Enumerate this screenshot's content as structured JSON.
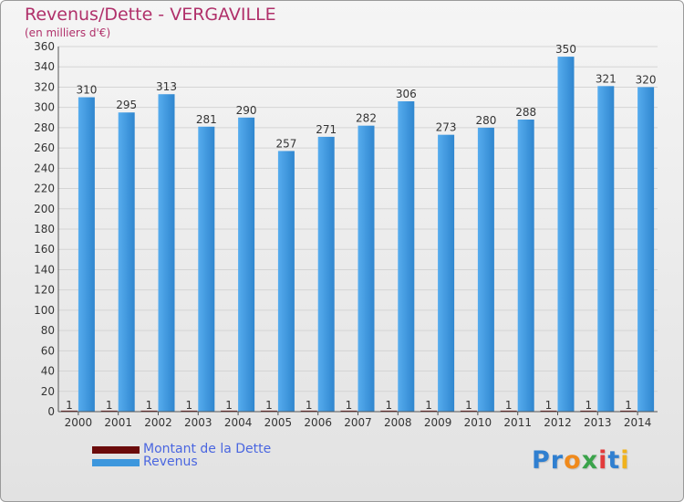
{
  "chart_data": {
    "type": "bar",
    "title": "Revenus/Dette - VERGAVILLE",
    "subtitle": "(en milliers d'€)",
    "categories": [
      "2000",
      "2001",
      "2002",
      "2003",
      "2004",
      "2005",
      "2006",
      "2007",
      "2008",
      "2009",
      "2010",
      "2011",
      "2012",
      "2013",
      "2014"
    ],
    "series": [
      {
        "name": "Montant de la Dette",
        "color": "#6b0b0b",
        "values": [
          1,
          1,
          1,
          1,
          1,
          1,
          1,
          1,
          1,
          1,
          1,
          1,
          1,
          1,
          1
        ]
      },
      {
        "name": "Revenus",
        "color": "#3d97dd",
        "values": [
          310,
          295,
          313,
          281,
          290,
          257,
          271,
          282,
          306,
          273,
          280,
          288,
          350,
          321,
          320
        ]
      }
    ],
    "y_ticks": [
      "0",
      "20",
      "40",
      "60",
      "80",
      "100",
      "120",
      "140",
      "160",
      "180",
      "200",
      "220",
      "240",
      "260",
      "280",
      "300",
      "320",
      "340",
      "360"
    ],
    "ylim": [
      0,
      360
    ],
    "grid": true,
    "legend_position": "bottom-left"
  },
  "logo": {
    "letters": [
      {
        "ch": "P",
        "color": "#2f7fd0"
      },
      {
        "ch": "r",
        "color": "#2f7fd0"
      },
      {
        "ch": "o",
        "color": "#f08a1c"
      },
      {
        "ch": "x",
        "color": "#3aa34a"
      },
      {
        "ch": "i",
        "color": "#e23a3a"
      },
      {
        "ch": "t",
        "color": "#2f7fd0"
      },
      {
        "ch": "i",
        "color": "#f0b21c"
      }
    ]
  }
}
